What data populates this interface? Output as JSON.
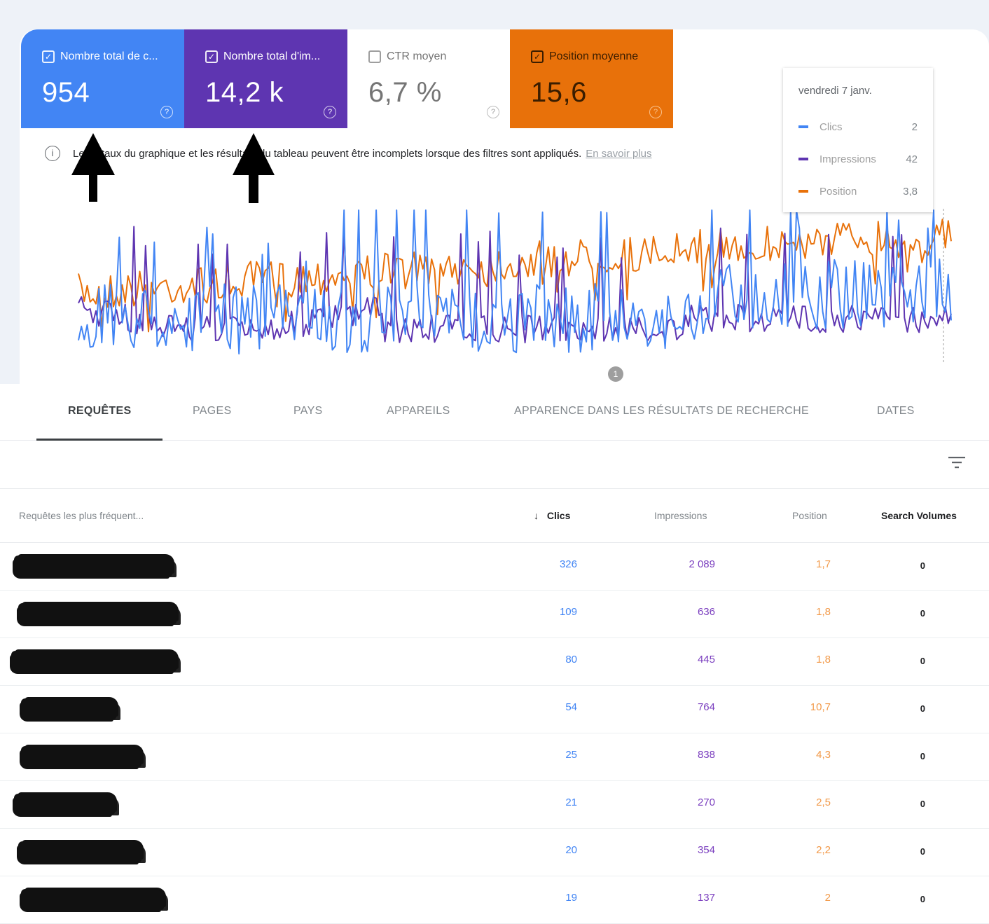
{
  "metrics": [
    {
      "label": "Nombre total de c...",
      "value": "954",
      "checked": true,
      "color": "#4285f4"
    },
    {
      "label": "Nombre total d'im...",
      "value": "14,2 k",
      "checked": true,
      "color": "#5e35b1"
    },
    {
      "label": "CTR moyen",
      "value": "6,7 %",
      "checked": false,
      "color": "#ffffff"
    },
    {
      "label": "Position moyenne",
      "value": "15,6",
      "checked": true,
      "color": "#e8710a"
    }
  ],
  "help_glyph": "?",
  "check_glyph": "✓",
  "notice": {
    "info_glyph": "i",
    "text": "Les totaux du graphique et les résultats du tableau peuvent être incomplets lorsque des filtres sont appliqués.",
    "link": "En savoir plus"
  },
  "tooltip": {
    "date": "vendredi 7 janv.",
    "rows": [
      {
        "name": "Clics",
        "value": "2",
        "color": "#4285f4"
      },
      {
        "name": "Impressions",
        "value": "42",
        "color": "#5e35b1"
      },
      {
        "name": "Position",
        "value": "3,8",
        "color": "#e8710a"
      }
    ]
  },
  "chart_marker": "1",
  "chart_data": {
    "type": "line",
    "series": [
      {
        "name": "Clics",
        "color": "#4285f4"
      },
      {
        "name": "Impressions",
        "color": "#5e35b1"
      },
      {
        "name": "Position",
        "color": "#e8710a"
      }
    ]
  },
  "tabs": [
    "REQUÊTES",
    "PAGES",
    "PAYS",
    "APPAREILS",
    "APPARENCE DANS LES RÉSULTATS DE RECHERCHE",
    "DATES"
  ],
  "table": {
    "headers": {
      "query": "Requêtes les plus fréquent...",
      "sort_glyph": "↓",
      "clicks": "Clics",
      "impressions": "Impressions",
      "position": "Position",
      "volumes": "Search Volumes"
    },
    "rows": [
      {
        "clicks": "326",
        "impressions": "2 089",
        "position": "1,7",
        "volume": "0"
      },
      {
        "clicks": "109",
        "impressions": "636",
        "position": "1,8",
        "volume": "0"
      },
      {
        "clicks": "80",
        "impressions": "445",
        "position": "1,8",
        "volume": "0"
      },
      {
        "clicks": "54",
        "impressions": "764",
        "position": "10,7",
        "volume": "0"
      },
      {
        "clicks": "25",
        "impressions": "838",
        "position": "4,3",
        "volume": "0"
      },
      {
        "clicks": "21",
        "impressions": "270",
        "position": "2,5",
        "volume": "0"
      },
      {
        "clicks": "20",
        "impressions": "354",
        "position": "2,2",
        "volume": "0"
      },
      {
        "clicks": "19",
        "impressions": "137",
        "position": "2",
        "volume": "0"
      }
    ]
  }
}
